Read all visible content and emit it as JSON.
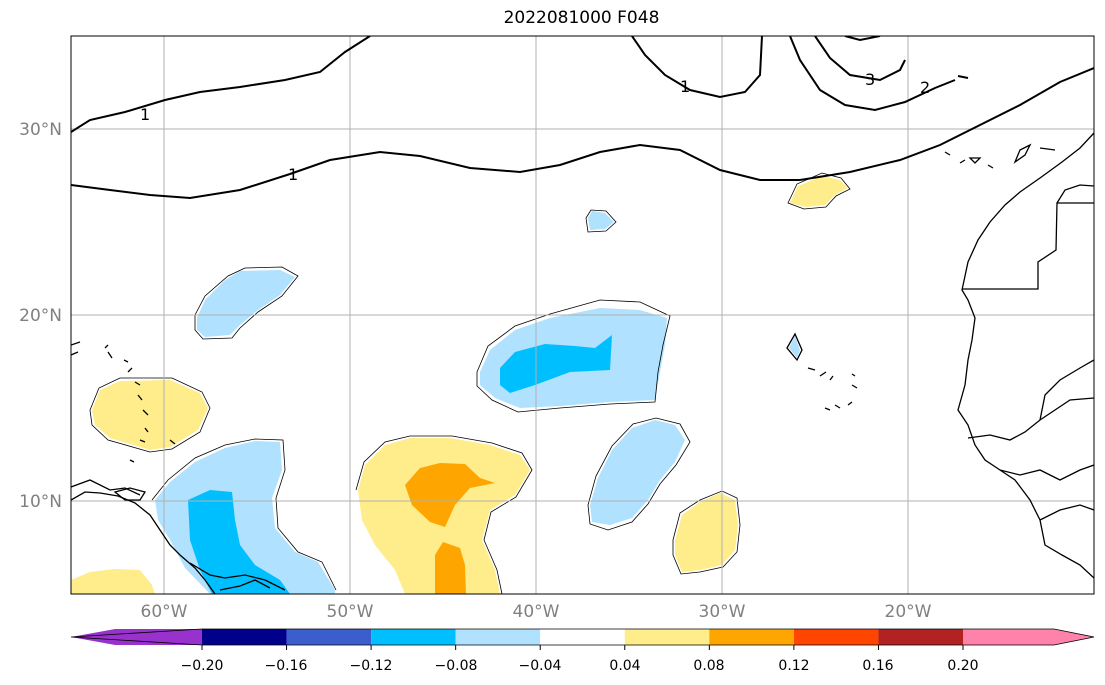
{
  "title": "2022081000 F048",
  "map": {
    "lon_range": [
      -65,
      -10
    ],
    "lat_range": [
      5,
      35
    ],
    "grid": true,
    "lon_ticks": [
      {
        "value": -60,
        "label": "60°W"
      },
      {
        "value": -50,
        "label": "50°W"
      },
      {
        "value": -40,
        "label": "40°W"
      },
      {
        "value": -30,
        "label": "30°W"
      },
      {
        "value": -20,
        "label": "20°W"
      }
    ],
    "lat_ticks": [
      {
        "value": 10,
        "label": "10°N"
      },
      {
        "value": 20,
        "label": "20°N"
      },
      {
        "value": 30,
        "label": "30°N"
      }
    ],
    "contour_labels": [
      "1",
      "1",
      "1",
      "3",
      "2"
    ]
  },
  "colorbar": {
    "colors": [
      "#9932CC",
      "#00008B",
      "#3A5FCD",
      "#00BFFF",
      "#B0E2FF",
      "#FFFFFF",
      "#FFEC8B",
      "#FFA500",
      "#FF4500",
      "#B22222",
      "#FF82AB"
    ],
    "ticks": [
      "−0.20",
      "−0.16",
      "−0.12",
      "−0.08",
      "−0.04",
      "0.04",
      "0.08",
      "0.12",
      "0.16",
      "0.20"
    ],
    "extend": "both"
  }
}
